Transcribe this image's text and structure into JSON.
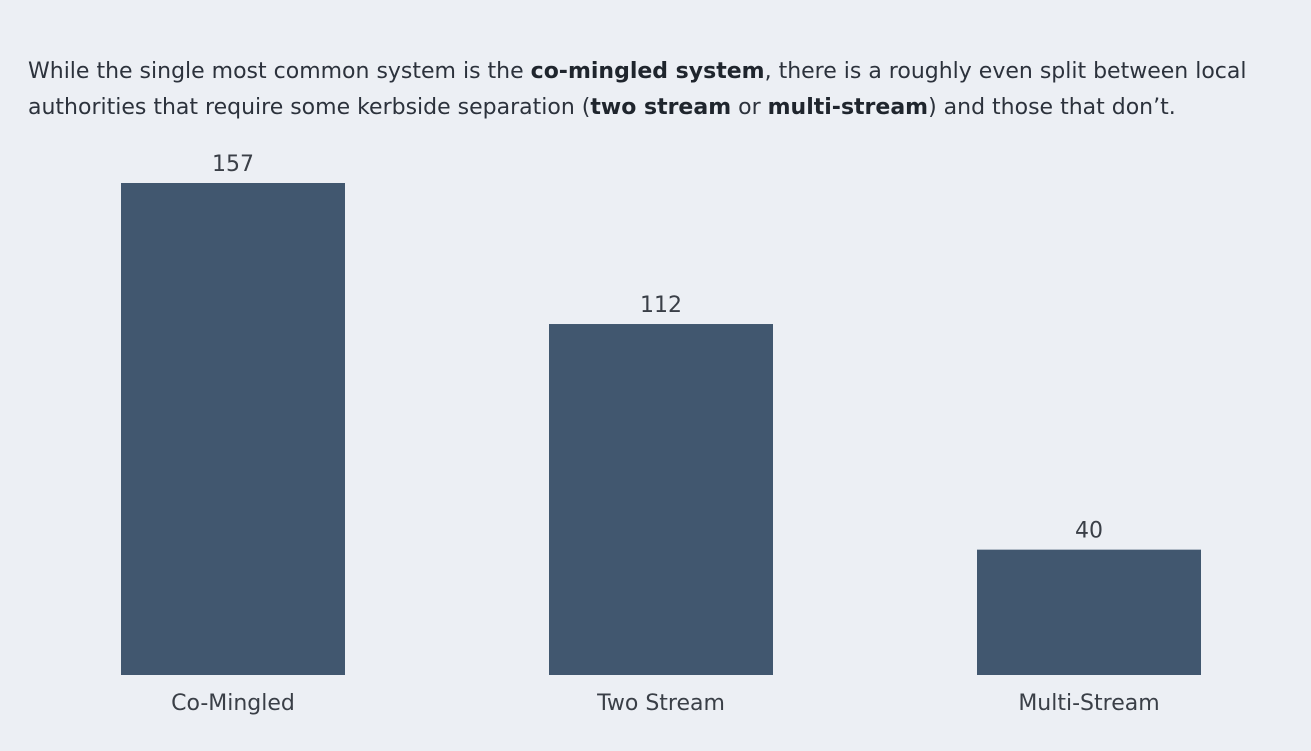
{
  "description": {
    "parts": [
      {
        "text": "While the single most common system is the ",
        "bold": false
      },
      {
        "text": "co-mingled system",
        "bold": true
      },
      {
        "text": ", there is a roughly even split between local authorities that require some kerbside separation (",
        "bold": false
      },
      {
        "text": "two stream",
        "bold": true
      },
      {
        "text": " or ",
        "bold": false
      },
      {
        "text": "multi-stream",
        "bold": true
      },
      {
        "text": ") and those that don’t.",
        "bold": false
      }
    ]
  },
  "chart_data": {
    "type": "bar",
    "categories": [
      "Co-Mingled",
      "Two Stream",
      "Multi-Stream"
    ],
    "values": [
      157,
      112,
      40
    ],
    "title": "",
    "xlabel": "",
    "ylabel": "",
    "ylim": [
      0,
      157
    ],
    "grid": false,
    "legend": "none",
    "bar_color": "#41576f",
    "background": "#eceff4",
    "show_value_labels": true
  }
}
